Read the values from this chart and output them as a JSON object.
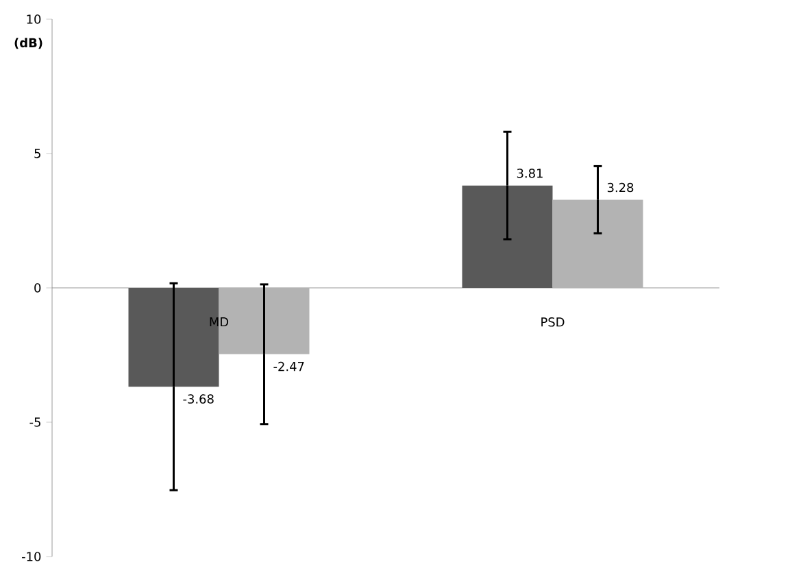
{
  "chart_data": {
    "type": "bar",
    "ylabel": "(dB)",
    "categories": [
      "MD",
      "PSD"
    ],
    "series": [
      {
        "color": "#595959",
        "values": [
          -3.68,
          3.81
        ],
        "errors": [
          3.85,
          2.0
        ]
      },
      {
        "color": "#b3b3b3",
        "values": [
          -2.47,
          3.28
        ],
        "errors": [
          2.6,
          1.25
        ]
      }
    ],
    "ylim": [
      -10,
      10
    ],
    "yticks": [
      -10,
      -5,
      0,
      5,
      10
    ],
    "data_labels": true
  }
}
